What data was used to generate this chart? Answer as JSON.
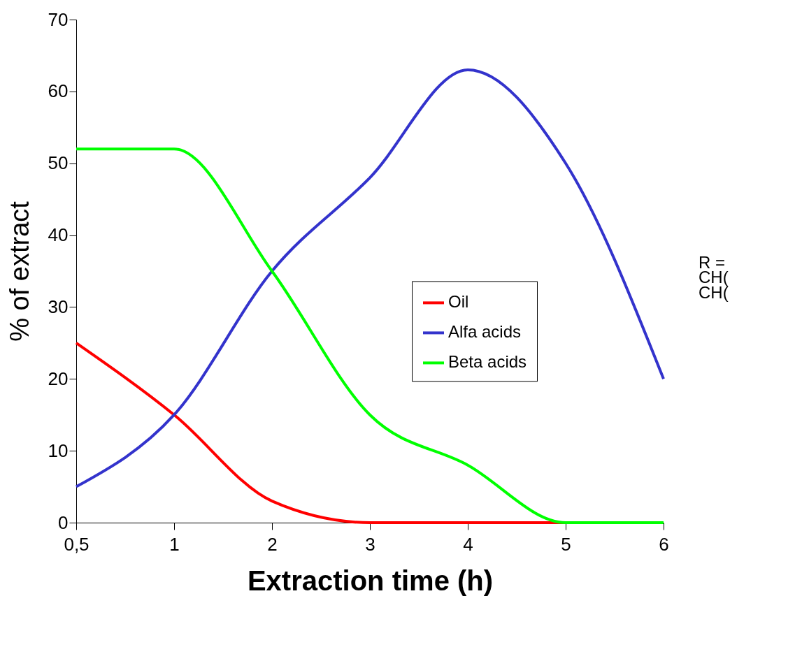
{
  "chart_data": {
    "type": "line",
    "xlabel": "Extraction time (h)",
    "ylabel": "% of extract",
    "categories": [
      "0,5",
      "1",
      "2",
      "3",
      "4",
      "5",
      "6"
    ],
    "series": [
      {
        "name": "Oil",
        "color": "#ff0000",
        "values": [
          25,
          15,
          3,
          0,
          0,
          0,
          0
        ]
      },
      {
        "name": "Alfa acids",
        "color": "#3333cc",
        "values": [
          5,
          15,
          35,
          48,
          63,
          50,
          20
        ]
      },
      {
        "name": "Beta acids",
        "color": "#00ff00",
        "values": [
          52,
          52,
          35,
          15,
          8,
          0,
          0
        ]
      }
    ],
    "ylim": [
      0,
      70
    ],
    "yticks": [
      0,
      10,
      20,
      30,
      40,
      50,
      60,
      70
    ],
    "legend": "center",
    "grid": false,
    "marker": "none",
    "line_style": "solid",
    "annotations": [
      "R =",
      "CH(",
      "CH("
    ]
  }
}
